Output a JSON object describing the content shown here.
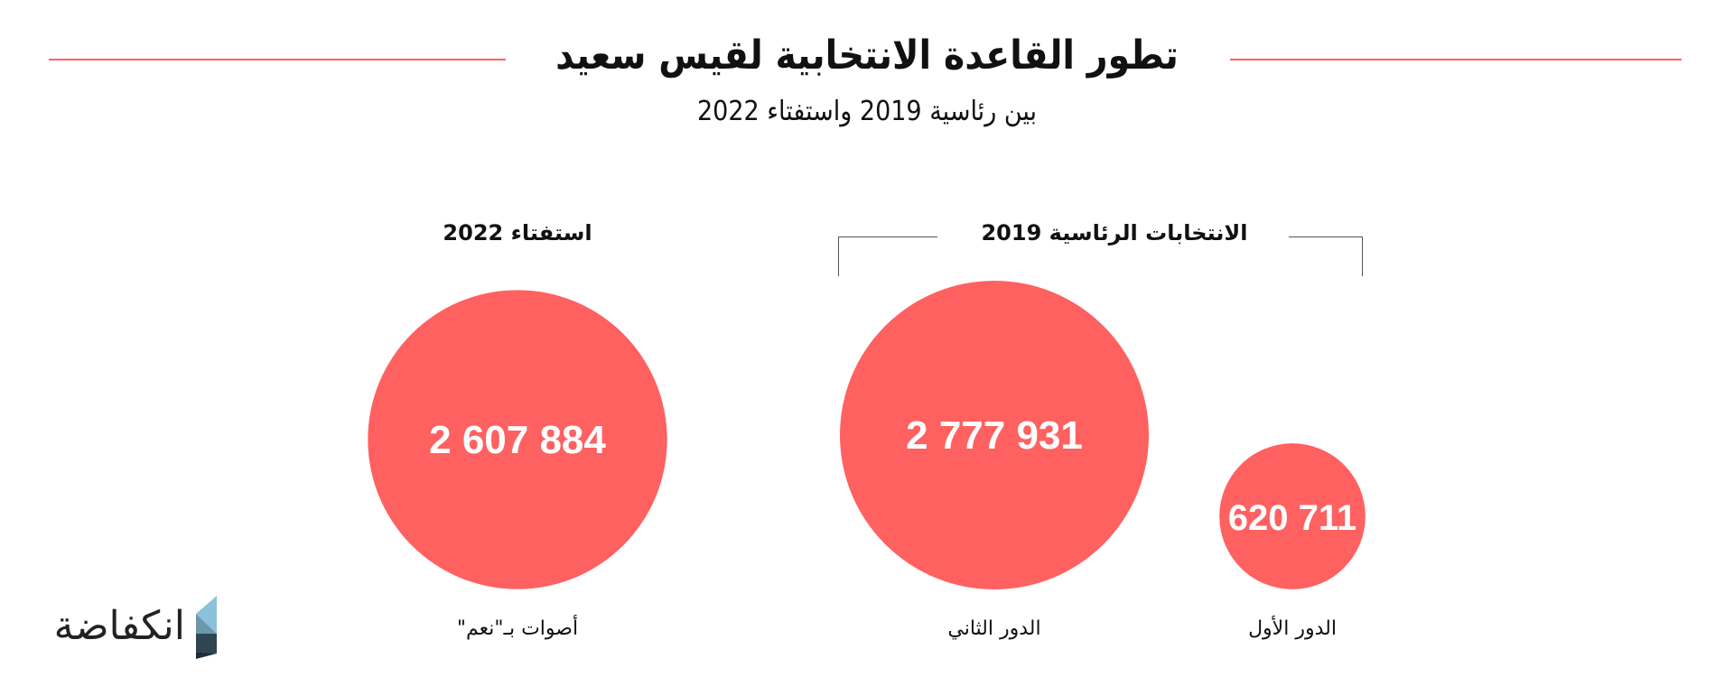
{
  "title": "تطور القاعدة الانتخابية لقيس سعيد",
  "subtitle": "بين رئاسية 2019 واستفتاء 2022",
  "logo": "انكفاضة",
  "sections": {
    "referendum": "استفتاء 2022",
    "presidential": "الانتخابات الرئاسية 2019"
  },
  "accent_color": "#ff6160",
  "chart_data": {
    "type": "bubble",
    "title": "تطور القاعدة الانتخابية لقيس سعيد",
    "categories": [
      "أصوات بـ\"نعم\"",
      "الدور الثاني",
      "الدور الأول"
    ],
    "values": [
      2607884,
      2777931,
      620711
    ],
    "value_labels": [
      "2 607 884",
      "2 777 931",
      "620 711"
    ],
    "groups": [
      "استفتاء 2022",
      "الانتخابات الرئاسية 2019",
      "الانتخابات الرئاسية 2019"
    ]
  }
}
